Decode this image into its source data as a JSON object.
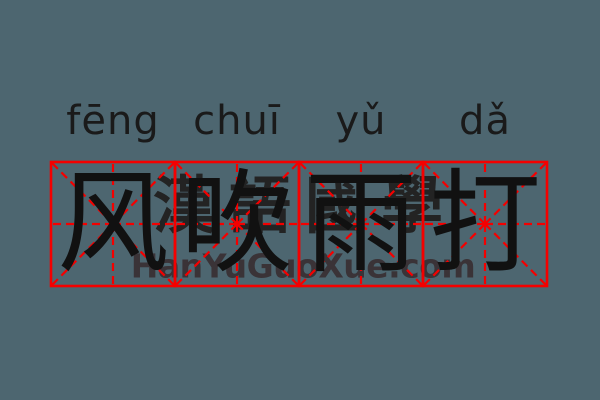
{
  "colors": {
    "bg": "#4d6670",
    "grid_red": "#f40000",
    "ink": "#111111",
    "pinyin_ink": "#1a1a1a",
    "wm_cjk": "#232323",
    "wm_url": "#3a3337"
  },
  "word": {
    "idiom": "风吹雨打",
    "pinyin_full": "fēng chuī yǔ dǎ",
    "syllables": [
      {
        "pinyin": "fēng",
        "hanzi": "风"
      },
      {
        "pinyin": "chuī",
        "hanzi": "吹"
      },
      {
        "pinyin": "yǔ",
        "hanzi": "雨"
      },
      {
        "pinyin": "dǎ",
        "hanzi": "打"
      }
    ]
  },
  "watermark": {
    "cjk": "漢語國學",
    "url": "HanYuGuoXue.com"
  },
  "grid": {
    "cells": 4,
    "type": "mi-zi-ge"
  }
}
